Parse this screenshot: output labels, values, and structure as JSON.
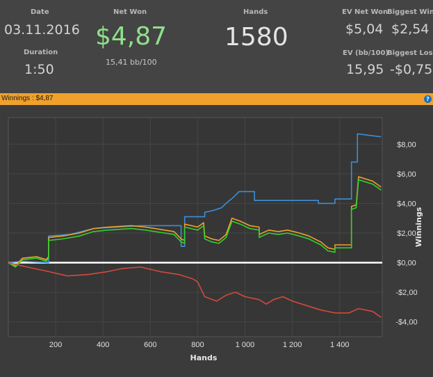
{
  "stats": {
    "date": {
      "label": "Date",
      "value": "03.11.2016"
    },
    "duration": {
      "label": "Duration",
      "value": "1:50"
    },
    "net_won": {
      "label": "Net Won",
      "value": "$4,87",
      "sub": "15,41 bb/100"
    },
    "hands": {
      "label": "Hands",
      "value": "1580"
    },
    "ev_net_won": {
      "label": "EV Net Won",
      "value": "$5,04"
    },
    "biggest_win": {
      "label": "Biggest Win",
      "value": "$2,54"
    },
    "ev_bb100": {
      "label": "EV (bb/100)",
      "value": "15,95"
    },
    "biggest_loss": {
      "label": "Biggest Loss",
      "value": "-$0,75"
    }
  },
  "panel": {
    "title": "Winnings : $4,87",
    "help_label": "?"
  },
  "colors": {
    "net_won": "#8fe08a",
    "orange": "#f0a12c",
    "blue": "#3b8fd6",
    "green": "#32d22a",
    "red": "#d24a3c",
    "zero": "#ffffff"
  },
  "chart_data": {
    "type": "line",
    "xlabel": "Hands",
    "ylabel": "Winnings",
    "xlim": [
      0,
      1580
    ],
    "ylim": [
      -5,
      9.8
    ],
    "x_ticks": [
      200,
      400,
      600,
      800,
      1000,
      1200,
      1400
    ],
    "x_tick_labels": [
      "200",
      "400",
      "600",
      "800",
      "1 000",
      "1 200",
      "1 400"
    ],
    "y_ticks": [
      8,
      6,
      4,
      2,
      0,
      -2,
      -4
    ],
    "y_tick_labels": [
      "$8,00",
      "$6,00",
      "$4,00",
      "$2,00",
      "$0,00",
      "-$2,00",
      "-$4,00"
    ],
    "grid": true,
    "series": [
      {
        "color_key": "blue",
        "points": [
          [
            0,
            0
          ],
          [
            60,
            0.1
          ],
          [
            170,
            0
          ],
          [
            170,
            1.8
          ],
          [
            260,
            1.9
          ],
          [
            360,
            2.3
          ],
          [
            460,
            2.4
          ],
          [
            560,
            2.5
          ],
          [
            660,
            2.5
          ],
          [
            730,
            2.5
          ],
          [
            730,
            1.1
          ],
          [
            745,
            1.1
          ],
          [
            745,
            3.1
          ],
          [
            830,
            3.1
          ],
          [
            830,
            3.4
          ],
          [
            860,
            3.5
          ],
          [
            900,
            3.7
          ],
          [
            920,
            4.0
          ],
          [
            950,
            4.4
          ],
          [
            975,
            4.8
          ],
          [
            1040,
            4.8
          ],
          [
            1040,
            4.2
          ],
          [
            1200,
            4.2
          ],
          [
            1310,
            4.2
          ],
          [
            1310,
            4.0
          ],
          [
            1380,
            4.0
          ],
          [
            1380,
            4.3
          ],
          [
            1450,
            4.3
          ],
          [
            1450,
            6.8
          ],
          [
            1475,
            6.8
          ],
          [
            1475,
            8.7
          ],
          [
            1575,
            8.5
          ]
        ]
      },
      {
        "color_key": "orange",
        "points": [
          [
            0,
            0
          ],
          [
            30,
            -0.2
          ],
          [
            60,
            0.3
          ],
          [
            120,
            0.4
          ],
          [
            160,
            0.2
          ],
          [
            170,
            0.4
          ],
          [
            170,
            1.7
          ],
          [
            230,
            1.8
          ],
          [
            300,
            2.0
          ],
          [
            360,
            2.3
          ],
          [
            420,
            2.4
          ],
          [
            520,
            2.5
          ],
          [
            580,
            2.4
          ],
          [
            620,
            2.3
          ],
          [
            660,
            2.2
          ],
          [
            700,
            2.1
          ],
          [
            730,
            1.6
          ],
          [
            745,
            1.5
          ],
          [
            745,
            2.6
          ],
          [
            800,
            2.4
          ],
          [
            825,
            2.7
          ],
          [
            830,
            1.8
          ],
          [
            860,
            1.6
          ],
          [
            890,
            1.5
          ],
          [
            920,
            1.9
          ],
          [
            945,
            3.0
          ],
          [
            980,
            2.8
          ],
          [
            1020,
            2.5
          ],
          [
            1060,
            2.4
          ],
          [
            1060,
            1.9
          ],
          [
            1100,
            2.2
          ],
          [
            1140,
            2.1
          ],
          [
            1180,
            2.2
          ],
          [
            1230,
            2.0
          ],
          [
            1270,
            1.8
          ],
          [
            1320,
            1.4
          ],
          [
            1350,
            1.0
          ],
          [
            1380,
            0.9
          ],
          [
            1380,
            1.2
          ],
          [
            1450,
            1.2
          ],
          [
            1450,
            3.8
          ],
          [
            1470,
            3.9
          ],
          [
            1480,
            5.8
          ],
          [
            1540,
            5.5
          ],
          [
            1575,
            5.1
          ]
        ]
      },
      {
        "color_key": "green",
        "points": [
          [
            0,
            0
          ],
          [
            30,
            -0.3
          ],
          [
            60,
            0.2
          ],
          [
            120,
            0.3
          ],
          [
            160,
            0.1
          ],
          [
            170,
            0.3
          ],
          [
            170,
            1.5
          ],
          [
            230,
            1.6
          ],
          [
            300,
            1.8
          ],
          [
            360,
            2.1
          ],
          [
            420,
            2.2
          ],
          [
            520,
            2.3
          ],
          [
            580,
            2.2
          ],
          [
            620,
            2.1
          ],
          [
            660,
            2.0
          ],
          [
            700,
            1.9
          ],
          [
            730,
            1.4
          ],
          [
            745,
            1.3
          ],
          [
            745,
            2.4
          ],
          [
            800,
            2.2
          ],
          [
            825,
            2.5
          ],
          [
            830,
            1.6
          ],
          [
            860,
            1.4
          ],
          [
            890,
            1.3
          ],
          [
            920,
            1.7
          ],
          [
            945,
            2.8
          ],
          [
            980,
            2.6
          ],
          [
            1020,
            2.3
          ],
          [
            1060,
            2.2
          ],
          [
            1060,
            1.7
          ],
          [
            1100,
            2.0
          ],
          [
            1140,
            1.9
          ],
          [
            1180,
            2.0
          ],
          [
            1230,
            1.8
          ],
          [
            1270,
            1.6
          ],
          [
            1320,
            1.2
          ],
          [
            1350,
            0.8
          ],
          [
            1380,
            0.7
          ],
          [
            1380,
            1.0
          ],
          [
            1450,
            1.0
          ],
          [
            1450,
            3.6
          ],
          [
            1470,
            3.7
          ],
          [
            1480,
            5.6
          ],
          [
            1540,
            5.3
          ],
          [
            1575,
            4.9
          ]
        ]
      },
      {
        "color_key": "red",
        "points": [
          [
            0,
            0
          ],
          [
            80,
            -0.3
          ],
          [
            170,
            -0.6
          ],
          [
            250,
            -0.9
          ],
          [
            340,
            -0.8
          ],
          [
            420,
            -0.6
          ],
          [
            480,
            -0.4
          ],
          [
            560,
            -0.3
          ],
          [
            640,
            -0.6
          ],
          [
            720,
            -0.8
          ],
          [
            780,
            -1.1
          ],
          [
            800,
            -1.3
          ],
          [
            830,
            -2.3
          ],
          [
            880,
            -2.6
          ],
          [
            920,
            -2.2
          ],
          [
            960,
            -2.0
          ],
          [
            1000,
            -2.3
          ],
          [
            1060,
            -2.5
          ],
          [
            1090,
            -2.8
          ],
          [
            1120,
            -2.5
          ],
          [
            1160,
            -2.3
          ],
          [
            1200,
            -2.6
          ],
          [
            1260,
            -2.9
          ],
          [
            1320,
            -3.2
          ],
          [
            1380,
            -3.4
          ],
          [
            1440,
            -3.4
          ],
          [
            1480,
            -3.1
          ],
          [
            1540,
            -3.3
          ],
          [
            1575,
            -3.7
          ]
        ]
      }
    ]
  }
}
